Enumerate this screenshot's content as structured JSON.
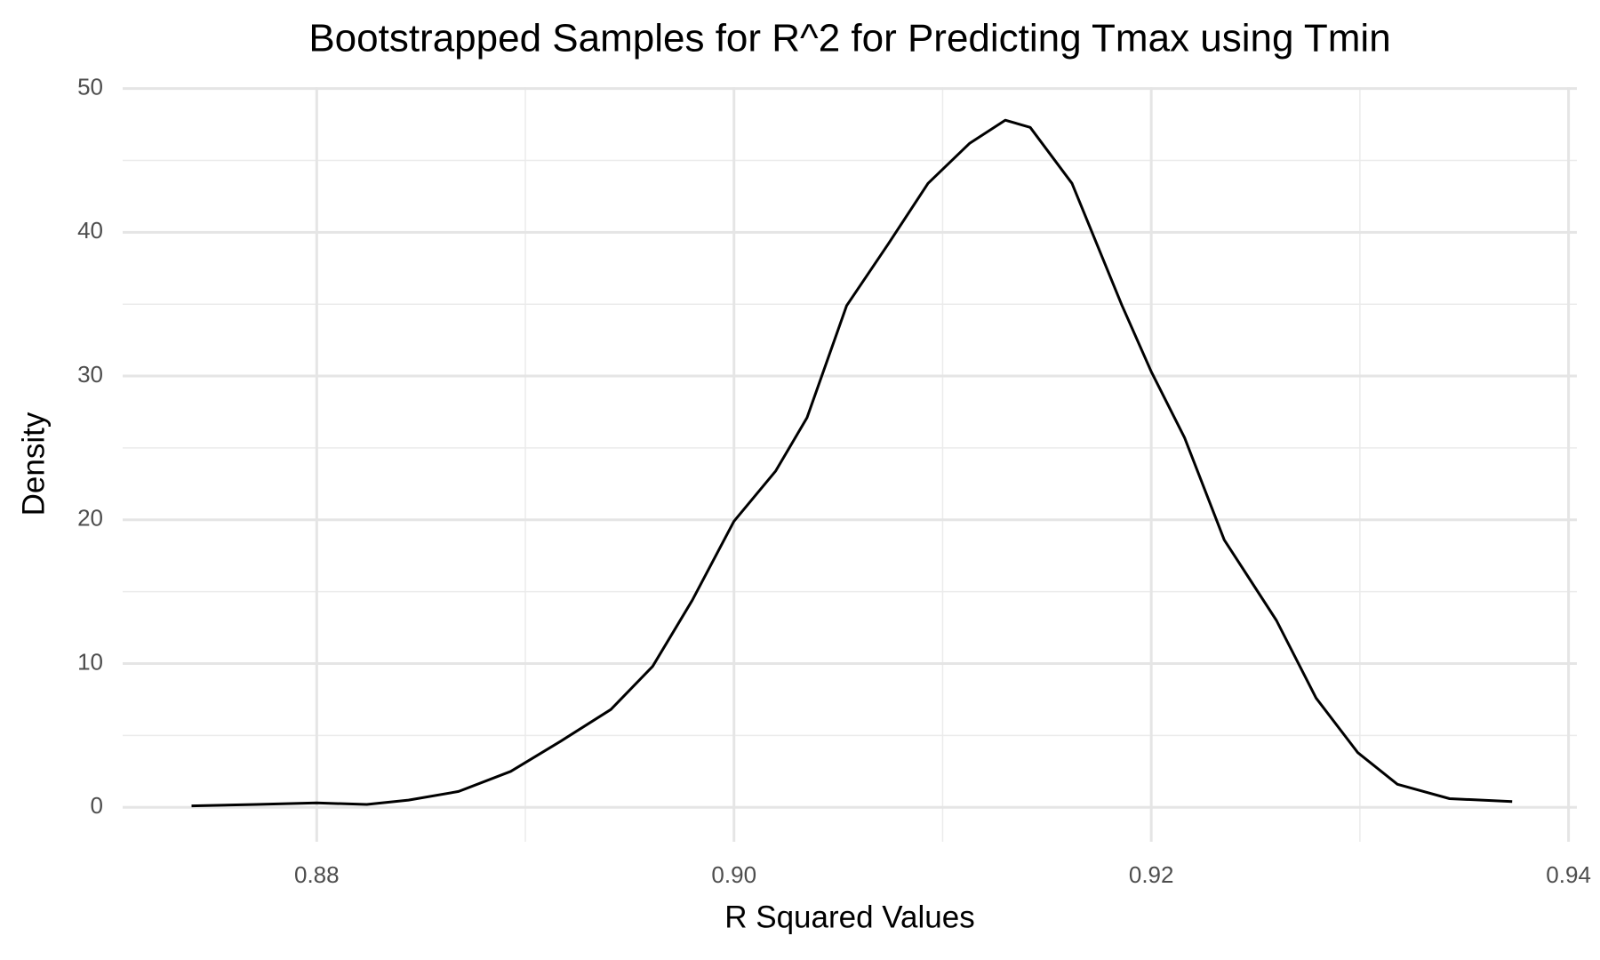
{
  "chart_data": {
    "type": "line",
    "title": "Bootstrapped Samples for R^2 for Predicting Tmax using Tmin",
    "x_label": "R Squared Values",
    "y_label": "Density",
    "x": [
      0.874,
      0.8771,
      0.88,
      0.8824,
      0.8844,
      0.8868,
      0.8893,
      0.8917,
      0.8941,
      0.8961,
      0.898,
      0.9,
      0.902,
      0.9035,
      0.9054,
      0.9074,
      0.9093,
      0.9113,
      0.913,
      0.9142,
      0.9162,
      0.9186,
      0.92,
      0.9216,
      0.9235,
      0.926,
      0.9279,
      0.9299,
      0.9318,
      0.9343,
      0.9373
    ],
    "values": [
      0.1,
      0.2,
      0.3,
      0.2,
      0.5,
      1.1,
      2.5,
      4.6,
      6.8,
      9.8,
      14.4,
      19.9,
      23.4,
      27.1,
      34.9,
      39.2,
      43.4,
      46.2,
      47.8,
      47.3,
      43.4,
      34.9,
      30.3,
      25.7,
      18.6,
      13.0,
      7.6,
      3.8,
      1.6,
      0.6,
      0.4
    ],
    "color": "#000000",
    "xlim": [
      0.8707,
      0.9404
    ],
    "xticks": [
      0.88,
      {
        "value": 0.9,
        "label": "0.90"
      },
      0.92,
      0.94
    ],
    "ylim": [
      -2.4,
      50.1
    ],
    "yticks": [
      0,
      10,
      20,
      30,
      40,
      50
    ],
    "grid": true
  }
}
